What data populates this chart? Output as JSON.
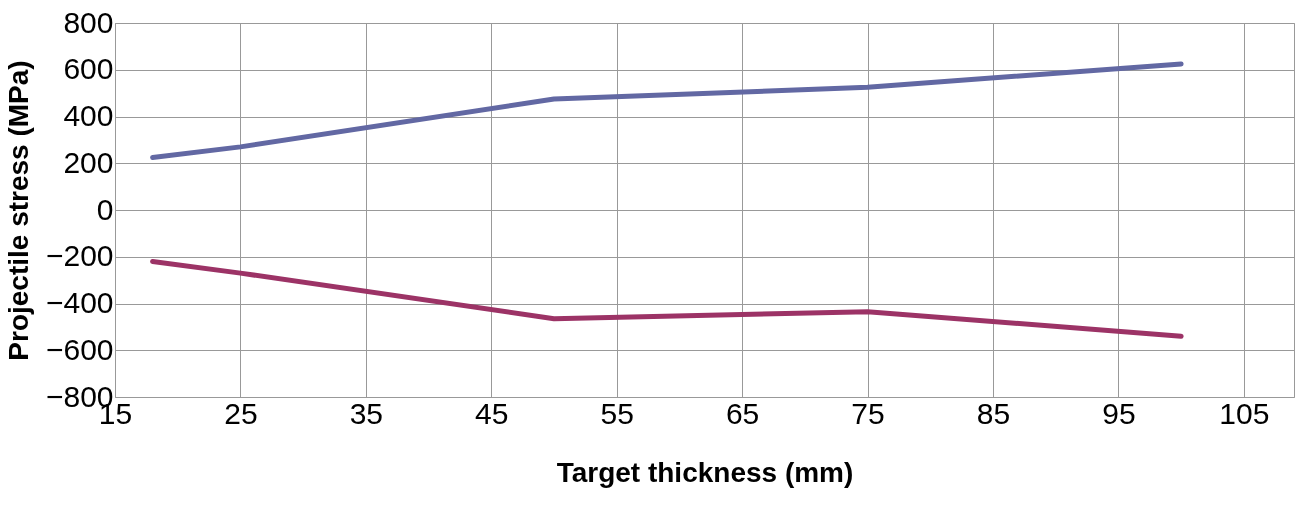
{
  "chart_data": {
    "type": "line",
    "xlabel": "Target thickness (mm)",
    "ylabel": "Projectile stress (MPa)",
    "xlim": [
      15,
      109
    ],
    "xticks": [
      15,
      25,
      35,
      45,
      55,
      65,
      75,
      85,
      95,
      105
    ],
    "ylim": [
      -800,
      800
    ],
    "yticks": [
      -800,
      -600,
      -400,
      -200,
      0,
      200,
      400,
      600,
      800
    ],
    "grid": true,
    "marker": "none",
    "line_style": "solid",
    "series": [
      {
        "color": "#6268a3",
        "x": [
          18,
          25,
          50,
          75,
          100
        ],
        "values": [
          225,
          270,
          475,
          525,
          625
        ]
      },
      {
        "color": "#9c3366",
        "x": [
          18,
          25,
          50,
          75,
          100
        ],
        "values": [
          -220,
          -270,
          -465,
          -435,
          -540
        ]
      }
    ]
  }
}
